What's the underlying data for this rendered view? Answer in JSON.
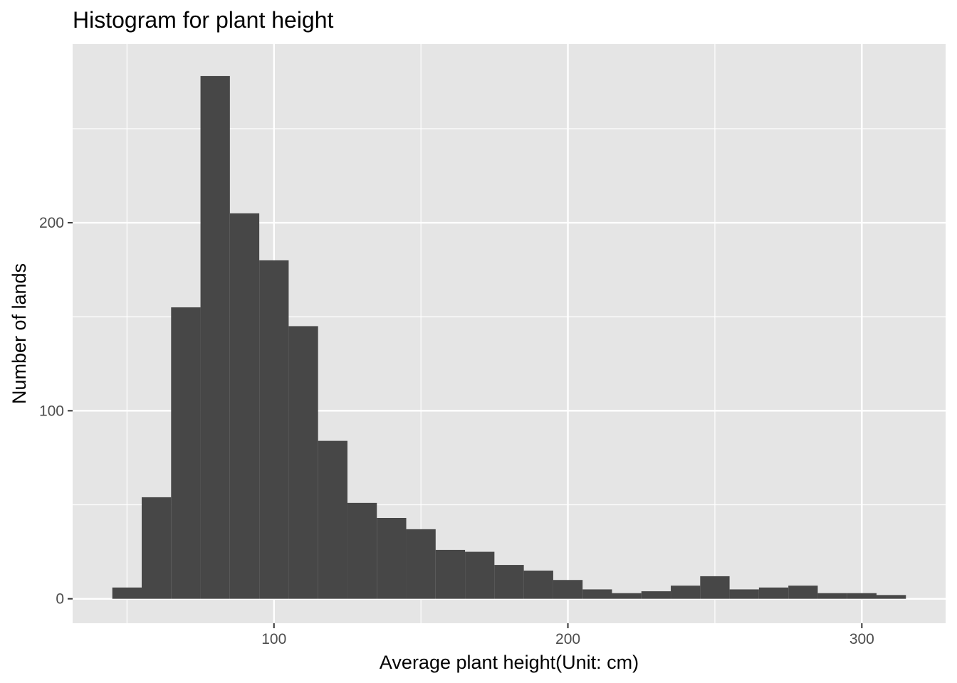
{
  "colors": {
    "panel_background": "#e5e5e5",
    "grid_line": "#ffffff",
    "bar_fill": "#474747",
    "tick_text": "#4d4d4d",
    "tick_mark": "#333333"
  },
  "chart_data": {
    "type": "bar",
    "title": "Histogram for plant height",
    "xlabel": "Average plant height(Unit: cm)",
    "ylabel": "Number of lands",
    "xlim": [
      31.5,
      328.5
    ],
    "ylim": [
      -13,
      295
    ],
    "x_ticks": [
      100,
      200,
      300
    ],
    "y_ticks": [
      0,
      100,
      200
    ],
    "x_minor_ticks": [
      50,
      150,
      250
    ],
    "y_minor_ticks": [
      50,
      150,
      250
    ],
    "bin_width": 10,
    "bins": [
      {
        "x_start": 45,
        "x_end": 55,
        "count": 6
      },
      {
        "x_start": 55,
        "x_end": 65,
        "count": 54
      },
      {
        "x_start": 65,
        "x_end": 75,
        "count": 155
      },
      {
        "x_start": 75,
        "x_end": 85,
        "count": 278
      },
      {
        "x_start": 85,
        "x_end": 95,
        "count": 205
      },
      {
        "x_start": 95,
        "x_end": 105,
        "count": 180
      },
      {
        "x_start": 105,
        "x_end": 115,
        "count": 145
      },
      {
        "x_start": 115,
        "x_end": 125,
        "count": 84
      },
      {
        "x_start": 125,
        "x_end": 135,
        "count": 51
      },
      {
        "x_start": 135,
        "x_end": 145,
        "count": 43
      },
      {
        "x_start": 145,
        "x_end": 155,
        "count": 37
      },
      {
        "x_start": 155,
        "x_end": 165,
        "count": 26
      },
      {
        "x_start": 165,
        "x_end": 175,
        "count": 25
      },
      {
        "x_start": 175,
        "x_end": 185,
        "count": 18
      },
      {
        "x_start": 185,
        "x_end": 195,
        "count": 15
      },
      {
        "x_start": 195,
        "x_end": 205,
        "count": 10
      },
      {
        "x_start": 205,
        "x_end": 215,
        "count": 5
      },
      {
        "x_start": 215,
        "x_end": 225,
        "count": 3
      },
      {
        "x_start": 225,
        "x_end": 235,
        "count": 4
      },
      {
        "x_start": 235,
        "x_end": 245,
        "count": 7
      },
      {
        "x_start": 245,
        "x_end": 255,
        "count": 12
      },
      {
        "x_start": 255,
        "x_end": 265,
        "count": 5
      },
      {
        "x_start": 265,
        "x_end": 275,
        "count": 6
      },
      {
        "x_start": 275,
        "x_end": 285,
        "count": 7
      },
      {
        "x_start": 285,
        "x_end": 295,
        "count": 3
      },
      {
        "x_start": 295,
        "x_end": 305,
        "count": 3
      },
      {
        "x_start": 305,
        "x_end": 315,
        "count": 2
      }
    ],
    "grid": true,
    "legend": "none"
  }
}
